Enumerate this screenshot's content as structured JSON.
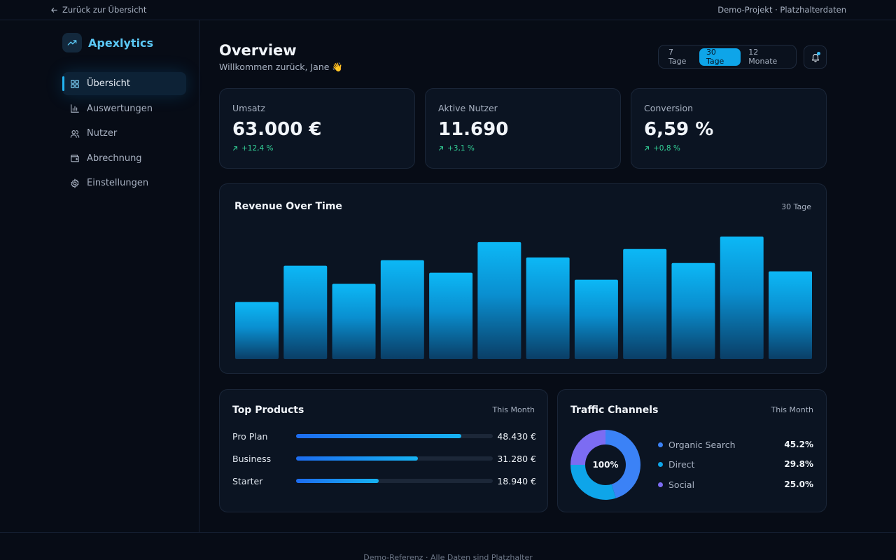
{
  "topbar": {
    "back_label": "Zurück zur Übersicht",
    "project_label": "Demo-Projekt · Platzhalterdaten"
  },
  "brand": {
    "name": "Apexlytics",
    "icon": "trending-up-icon"
  },
  "sidebar": {
    "items": [
      {
        "label": "Übersicht",
        "icon": "dashboard-grid-icon",
        "active": true
      },
      {
        "label": "Auswertungen",
        "icon": "bar-chart-icon",
        "active": false
      },
      {
        "label": "Nutzer",
        "icon": "users-icon",
        "active": false
      },
      {
        "label": "Abrechnung",
        "icon": "wallet-icon",
        "active": false
      },
      {
        "label": "Einstellungen",
        "icon": "gear-icon",
        "active": false
      }
    ]
  },
  "header": {
    "title": "Overview",
    "subtitle": "Willkommen zurück, Jane 👋",
    "ranges": [
      "7 Tage",
      "30 Tage",
      "12 Monate"
    ],
    "active_range": "30 Tage"
  },
  "kpis": [
    {
      "label": "Umsatz",
      "value": "63.000 €",
      "delta": "+12,4 %"
    },
    {
      "label": "Aktive Nutzer",
      "value": "11.690",
      "delta": "+3,1 %"
    },
    {
      "label": "Conversion",
      "value": "6,59 %",
      "delta": "+0,8 %"
    }
  ],
  "revenue": {
    "title": "Revenue Over Time",
    "meta": "30 Tage"
  },
  "chart_data": {
    "type": "bar",
    "title": "Revenue Over Time",
    "values": [
      41,
      67,
      54,
      71,
      62,
      84,
      73,
      57,
      79,
      69,
      88,
      63
    ],
    "ylim": [
      0,
      100
    ],
    "grid": false,
    "colors": {
      "top": "#0cb8f6",
      "bottom": "#0a3e66"
    }
  },
  "products": {
    "title": "Top Products",
    "meta": "This Month",
    "items": [
      {
        "name": "Pro Plan",
        "value": "48.430 €",
        "share": 0.84
      },
      {
        "name": "Business",
        "value": "31.280 €",
        "share": 0.62
      },
      {
        "name": "Starter",
        "value": "18.940 €",
        "share": 0.42
      }
    ]
  },
  "traffic": {
    "title": "Traffic Channels",
    "meta": "This Month",
    "total_label": "100%",
    "channels": [
      {
        "name": "Organic Search",
        "value": "45.2%",
        "pct": 45.2,
        "color": "#3b82f6"
      },
      {
        "name": "Direct",
        "value": "29.8%",
        "pct": 29.8,
        "color": "#0ea5e9"
      },
      {
        "name": "Social",
        "value": "25.0%",
        "pct": 25.0,
        "color": "#7c6cf2"
      }
    ]
  },
  "footer": {
    "text": "Demo-Referenz · Alle Daten sind Platzhalter"
  },
  "colors": {
    "accent": "#0ea5e9",
    "positive": "#34d399",
    "background": "#070c16"
  }
}
